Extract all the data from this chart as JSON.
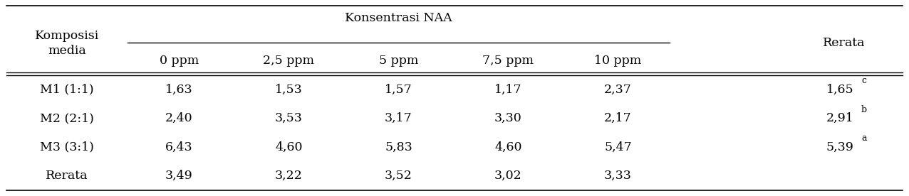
{
  "col_headers_top": [
    "Komposisi\nmedia",
    "Konsentrasi NAA",
    "Rerata"
  ],
  "col_headers_sub": [
    "0 ppm",
    "2,5 ppm",
    "5 ppm",
    "7,5 ppm",
    "10 ppm"
  ],
  "rows": [
    [
      "M1 (1:1)",
      "1,63",
      "1,53",
      "1,57",
      "1,17",
      "2,37",
      "1,65",
      "c"
    ],
    [
      "M2 (2:1)",
      "2,40",
      "3,53",
      "3,17",
      "3,30",
      "2,17",
      "2,91",
      "b"
    ],
    [
      "M3 (3:1)",
      "6,43",
      "4,60",
      "5,83",
      "4,60",
      "5,47",
      "5,39",
      "a"
    ],
    [
      "Rerata",
      "3,49",
      "3,22",
      "3,52",
      "3,02",
      "3,33",
      "",
      ""
    ]
  ],
  "background_color": "#ffffff",
  "text_color": "#000000",
  "font_size": 12.5,
  "superscript_size": 9
}
